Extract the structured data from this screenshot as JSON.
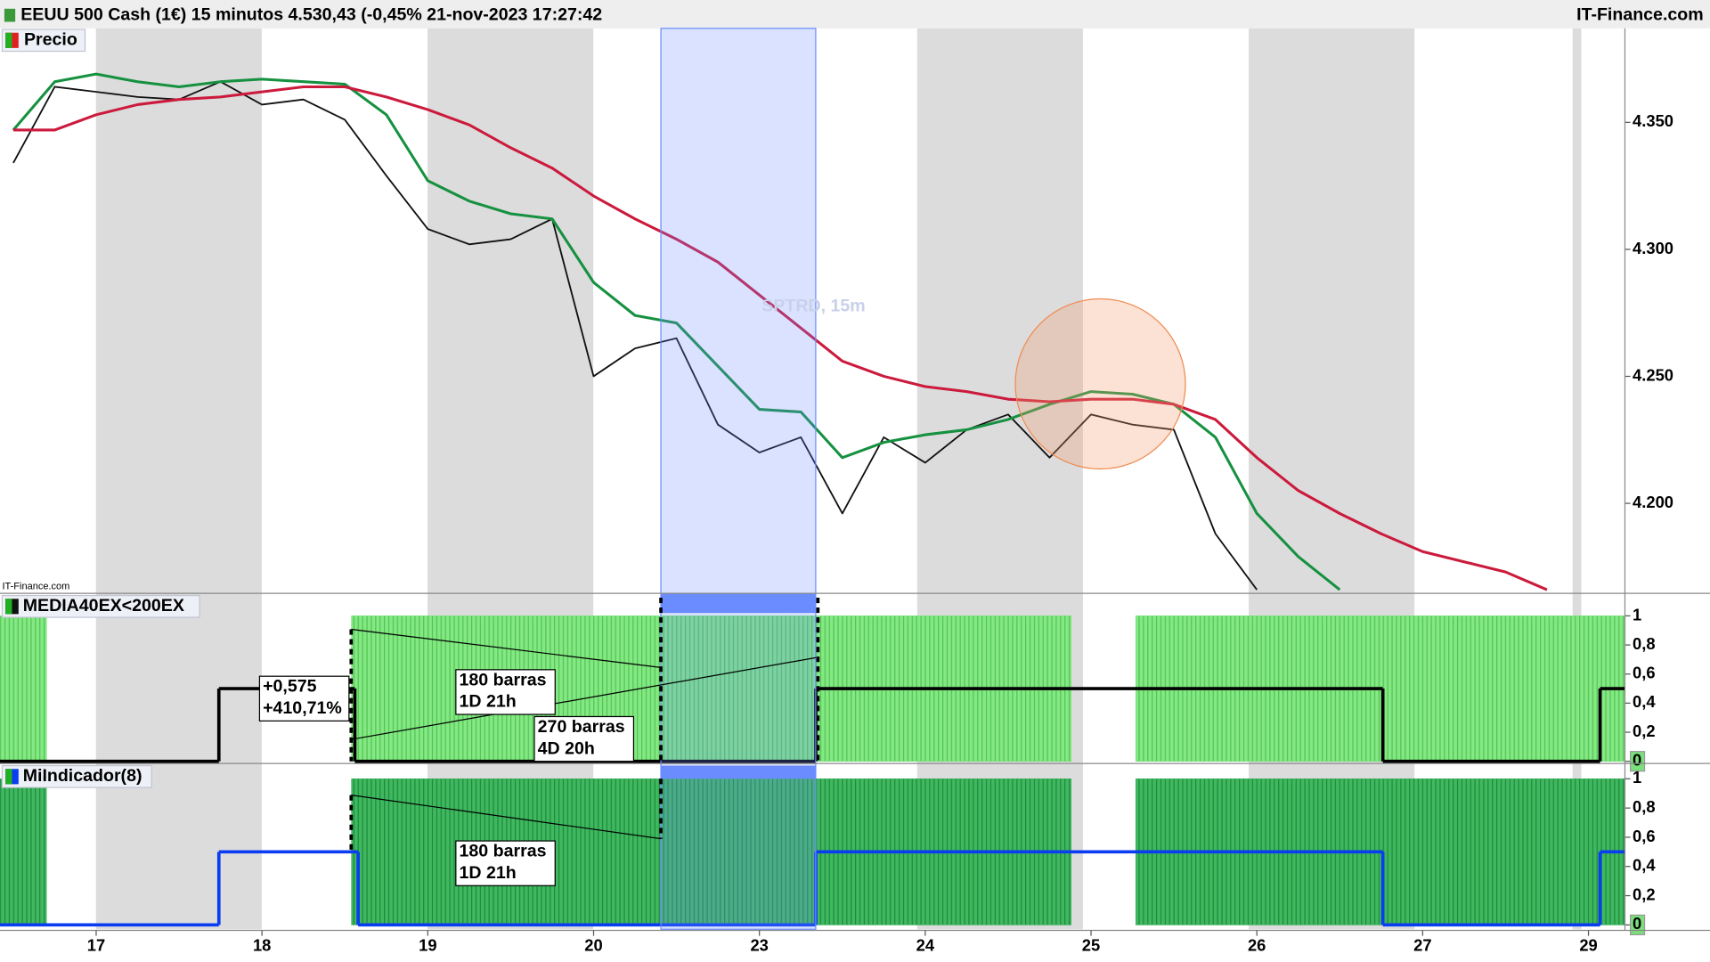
{
  "header": {
    "title": "EEUU 500 Cash (1€) 15 minutos 4.530,43 (-0,45% 21-nov-2023 17:27:42",
    "brand": "IT-Finance.com"
  },
  "chart_data": [
    {
      "type": "line",
      "title": "Precio",
      "watermark": "SPTRD, 15m",
      "source": "IT-Finance.com",
      "x": [
        -0.5,
        -0.25,
        0,
        0.25,
        0.5,
        0.75,
        1,
        1.25,
        1.5,
        1.75,
        2,
        2.25,
        2.5,
        2.75,
        3,
        3.25,
        3.5,
        3.75,
        4,
        4.25,
        4.5,
        4.75,
        5,
        5.25,
        5.5,
        5.75,
        6,
        6.25,
        6.5,
        6.75,
        7,
        7.25,
        7.5,
        7.75,
        8,
        8.25,
        8.5,
        8.75
      ],
      "xlim": [
        -0.58,
        9.22
      ],
      "xticks": [
        {
          "value": 0,
          "label": "17"
        },
        {
          "value": 1,
          "label": "18"
        },
        {
          "value": 2,
          "label": "19"
        },
        {
          "value": 3,
          "label": "20"
        },
        {
          "value": 4,
          "label": "23"
        },
        {
          "value": 5,
          "label": "24"
        },
        {
          "value": 6,
          "label": "25"
        },
        {
          "value": 7,
          "label": "26"
        },
        {
          "value": 8,
          "label": "27"
        },
        {
          "value": 9,
          "label": "29"
        }
      ],
      "ylim": [
        4.165,
        4.387
      ],
      "yticks": [
        {
          "value": 4.2,
          "label": "4.200"
        },
        {
          "value": 4.25,
          "label": "4.250"
        },
        {
          "value": 4.3,
          "label": "4.300"
        },
        {
          "value": 4.35,
          "label": "4.350"
        }
      ],
      "series": [
        {
          "color": "#111111",
          "values": [
            4.334,
            4.364,
            4.362,
            4.36,
            4.359,
            4.366,
            4.357,
            4.359,
            4.351,
            4.329,
            4.308,
            4.302,
            4.304,
            4.312,
            4.25,
            4.261,
            4.265,
            4.231,
            4.22,
            4.226,
            4.196,
            4.226,
            4.216,
            4.229,
            4.235,
            4.218,
            4.235,
            4.231,
            4.229,
            4.188,
            4.166,
            null,
            null,
            null,
            null,
            null,
            null,
            null
          ]
        },
        {
          "color": "#169140",
          "values": [
            4.347,
            4.366,
            4.369,
            4.366,
            4.364,
            4.366,
            4.367,
            4.366,
            4.365,
            4.353,
            4.327,
            4.319,
            4.314,
            4.312,
            4.287,
            4.274,
            4.271,
            4.254,
            4.237,
            4.236,
            4.218,
            4.224,
            4.227,
            4.229,
            4.233,
            4.239,
            4.244,
            4.243,
            4.239,
            4.226,
            4.196,
            4.179,
            4.166,
            null,
            null,
            null,
            null,
            null
          ]
        },
        {
          "color": "#cc1a3c",
          "values": [
            4.347,
            4.347,
            4.353,
            4.357,
            4.359,
            4.36,
            4.362,
            4.364,
            4.364,
            4.36,
            4.355,
            4.349,
            4.34,
            4.332,
            4.321,
            4.312,
            4.304,
            4.295,
            4.282,
            4.269,
            4.256,
            4.25,
            4.246,
            4.244,
            4.241,
            4.24,
            4.241,
            4.241,
            4.239,
            4.233,
            4.218,
            4.205,
            4.196,
            4.188,
            4.181,
            4.177,
            4.173,
            4.166
          ]
        }
      ]
    },
    {
      "type": "step",
      "title": "MEDIA40EX<200EX",
      "xlim": [
        -0.58,
        9.22
      ],
      "ylim": [
        0,
        1.14
      ],
      "yticks": [
        0,
        {
          "value": 0.2,
          "label": "0,2"
        },
        {
          "value": 0.4,
          "label": "0,4"
        },
        {
          "value": 0.6,
          "label": "0,6"
        },
        {
          "value": 0.8,
          "label": "0,8"
        },
        1
      ],
      "series": [
        {
          "color": "#6ee06e",
          "style": "area",
          "x": [
            -0.58,
            -0.3,
            1.54,
            5.88,
            6.27
          ],
          "values": [
            1,
            0,
            1,
            0,
            1
          ]
        },
        {
          "color": "#000000",
          "style": "line",
          "x": [
            -0.58,
            0.74,
            1.56,
            4.34,
            7.76,
            9.07
          ],
          "values": [
            0,
            0.5,
            0,
            0.5,
            0,
            0.5
          ]
        }
      ],
      "annotations": [
        "+0,575",
        "+410,71%",
        "180 barras",
        "1D 21h",
        "270 barras",
        "4D 20h"
      ]
    },
    {
      "type": "step",
      "title": "MiIndicador(8)",
      "xlim": [
        -0.58,
        9.22
      ],
      "ylim": [
        -0.03,
        1.09
      ],
      "yticks": [
        0,
        {
          "value": 0.2,
          "label": "0,2"
        },
        {
          "value": 0.4,
          "label": "0,4"
        },
        {
          "value": 0.6,
          "label": "0,6"
        },
        {
          "value": 0.8,
          "label": "0,8"
        },
        1
      ],
      "series": [
        {
          "color": "#34ad55",
          "style": "area",
          "x": [
            -0.58,
            -0.3,
            1.54,
            5.88,
            6.27
          ],
          "values": [
            1,
            0,
            1,
            0,
            1
          ]
        },
        {
          "color": "#0a3cf0",
          "style": "line",
          "x": [
            -0.58,
            0.74,
            1.58,
            4.34,
            7.76,
            9.07
          ],
          "values": [
            0,
            0.5,
            0,
            0.5,
            0,
            0.5
          ]
        }
      ],
      "annotations": [
        "180 barras",
        "1D 21h"
      ]
    }
  ]
}
